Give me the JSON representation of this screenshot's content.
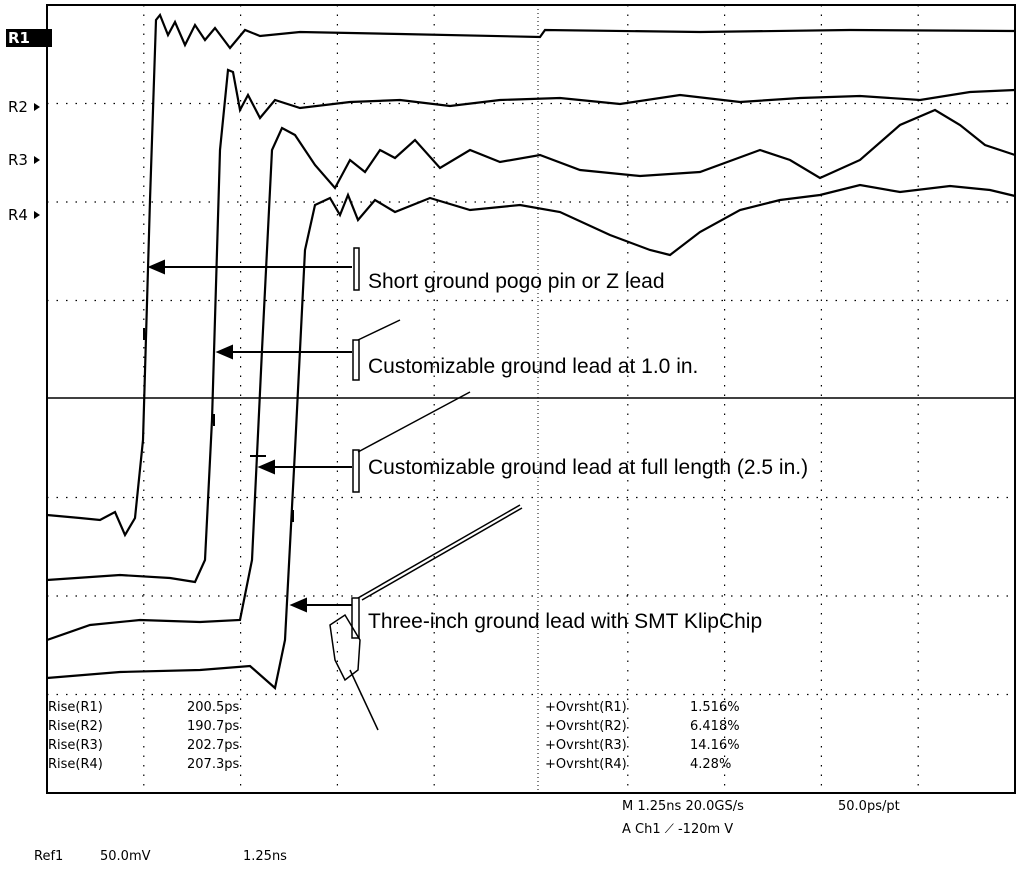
{
  "markers": [
    "R1",
    "R2",
    "R3",
    "R4"
  ],
  "annotations": [
    "Short ground pogo pin or Z lead",
    "Customizable ground lead at 1.0 in.",
    "Customizable ground lead at full length (2.5 in.)",
    "Three-inch ground lead with SMT KlipChip"
  ],
  "measurements": {
    "rise": [
      {
        "label": "Rise(R1)",
        "value": "200.5ps"
      },
      {
        "label": "Rise(R2)",
        "value": "190.7ps"
      },
      {
        "label": "Rise(R3)",
        "value": "202.7ps"
      },
      {
        "label": "Rise(R4)",
        "value": "207.3ps"
      }
    ],
    "overshoot": [
      {
        "label": "+Ovrsht(R1)",
        "value": "1.516%"
      },
      {
        "label": "+Ovrsht(R2)",
        "value": "6.418%"
      },
      {
        "label": "+Ovrsht(R3)",
        "value": "14.16%"
      },
      {
        "label": "+Ovrsht(R4)",
        "value": "4.28%"
      }
    ]
  },
  "status": {
    "timebase": "M 1.25ns 20.0GS/s",
    "resolution": "50.0ps/pt",
    "trigger": "A Ch1 ⟋ -120m V"
  },
  "reference": {
    "label": "Ref1",
    "scale": "50.0mV",
    "time": "1.25ns"
  }
}
